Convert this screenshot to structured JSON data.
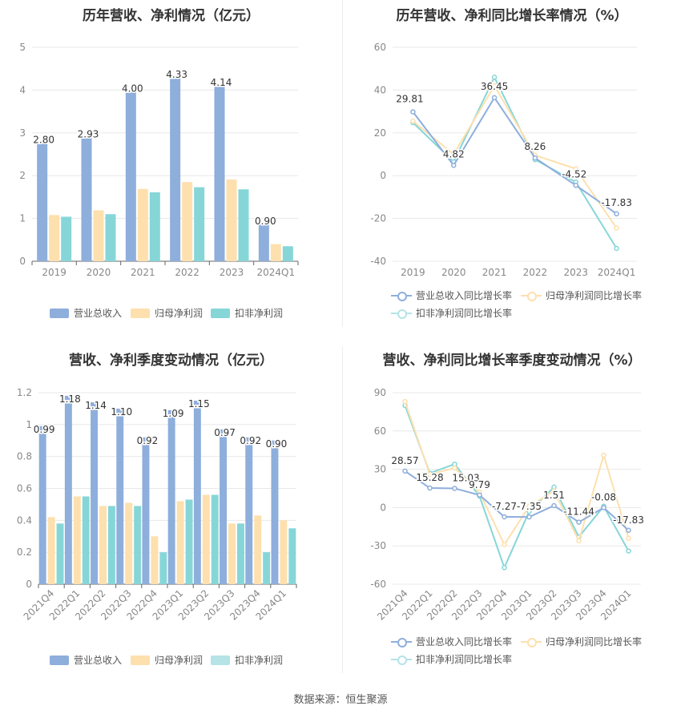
{
  "colors": {
    "revenue": "#8eaedc",
    "parent_profit": "#fde0ae",
    "nonrecurring_profit": "#86d6d8",
    "grid": "#e8e8e8",
    "axis_text": "#888888"
  },
  "source": "数据来源：恒生聚源",
  "chart_data": [
    {
      "id": "annual_bar",
      "type": "bar",
      "title": "历年营收、净利情况（亿元）",
      "categories": [
        "2019",
        "2020",
        "2021",
        "2022",
        "2023",
        "2024Q1"
      ],
      "ylim": [
        0,
        5
      ],
      "yticks": [
        "0",
        "1",
        "2",
        "3",
        "4",
        "5"
      ],
      "series": [
        {
          "name": "营业总收入",
          "values": [
            2.8,
            2.93,
            4.0,
            4.33,
            4.14,
            0.9
          ],
          "labels": [
            "2.80",
            "2.93",
            "4.00",
            "4.33",
            "4.14",
            "0.90"
          ]
        },
        {
          "name": "归母净利润",
          "values": [
            1.08,
            1.19,
            1.69,
            1.85,
            1.91,
            0.4
          ]
        },
        {
          "name": "扣非净利润",
          "values": [
            1.04,
            1.1,
            1.61,
            1.73,
            1.68,
            0.35
          ]
        }
      ],
      "legend": "bottom"
    },
    {
      "id": "annual_line",
      "type": "line",
      "title": "历年营收、净利同比增长率情况（%）",
      "categories": [
        "2019",
        "2020",
        "2021",
        "2022",
        "2023",
        "2024Q1"
      ],
      "ylim": [
        -40,
        60
      ],
      "yticks": [
        "-40",
        "-20",
        "0",
        "20",
        "40",
        "60"
      ],
      "series": [
        {
          "name": "营业总收入同比增长率",
          "values": [
            29.81,
            4.82,
            36.45,
            8.26,
            -4.52,
            -17.83
          ],
          "labels": [
            "29.81",
            "4.82",
            "36.45",
            "8.26",
            "-4.52",
            "-17.83"
          ]
        },
        {
          "name": "归母净利润同比增长率",
          "values": [
            25.5,
            10.0,
            42.0,
            9.5,
            3.2,
            -24.5
          ]
        },
        {
          "name": "扣非净利润同比增长率",
          "values": [
            24.8,
            6.5,
            46.0,
            7.5,
            -3.0,
            -34.0
          ]
        }
      ],
      "legend": "bottom"
    },
    {
      "id": "quarterly_bar",
      "type": "bar",
      "title": "营收、净利季度变动情况（亿元）",
      "categories": [
        "2021Q4",
        "2022Q1",
        "2022Q2",
        "2022Q3",
        "2022Q4",
        "2023Q1",
        "2023Q2",
        "2023Q3",
        "2023Q4",
        "2024Q1"
      ],
      "ylim": [
        0,
        1.2
      ],
      "yticks": [
        "0",
        "0.2",
        "0.4",
        "0.6",
        "0.8",
        "1",
        "1.2"
      ],
      "series": [
        {
          "name": "营业总收入",
          "values": [
            0.99,
            1.18,
            1.14,
            1.1,
            0.92,
            1.09,
            1.15,
            0.97,
            0.92,
            0.9
          ],
          "labels": [
            "0.99",
            "1.18",
            "1.14",
            "1.10",
            "0.92",
            "1.09",
            "1.15",
            "0.97",
            "0.92",
            "0.90"
          ]
        },
        {
          "name": "归母净利润",
          "values": [
            0.42,
            0.55,
            0.49,
            0.51,
            0.3,
            0.52,
            0.56,
            0.38,
            0.43,
            0.4
          ]
        },
        {
          "name": "扣非净利润",
          "values": [
            0.38,
            0.55,
            0.49,
            0.49,
            0.2,
            0.53,
            0.56,
            0.38,
            0.2,
            0.35
          ]
        }
      ],
      "legend": "bottom"
    },
    {
      "id": "quarterly_line",
      "type": "line",
      "title": "营收、净利同比增长率季度变动情况（%）",
      "categories": [
        "2021Q4",
        "2022Q1",
        "2022Q2",
        "2022Q3",
        "2022Q4",
        "2023Q1",
        "2023Q2",
        "2023Q3",
        "2023Q4",
        "2024Q1"
      ],
      "ylim": [
        -60,
        90
      ],
      "yticks": [
        "-60",
        "-30",
        "0",
        "30",
        "60",
        "90"
      ],
      "series": [
        {
          "name": "营业总收入同比增长率",
          "values": [
            28.57,
            15.28,
            15.03,
            9.79,
            -7.27,
            -7.35,
            1.51,
            -11.44,
            -0.08,
            -17.83
          ],
          "labels": [
            "28.57",
            "15.28",
            "15.03",
            "9.79",
            "-7.27",
            "-7.35",
            "1.51",
            "-11.44",
            "-0.08",
            "-17.83"
          ]
        },
        {
          "name": "归母净利润同比增长率",
          "values": [
            83.0,
            26.0,
            31.0,
            12.0,
            -29.0,
            1.0,
            13.0,
            -26.0,
            41.0,
            -24.0
          ]
        },
        {
          "name": "扣非净利润同比增长率",
          "values": [
            80.0,
            27.0,
            34.0,
            9.0,
            -47.0,
            -3.0,
            16.0,
            -23.0,
            1.0,
            -34.0
          ]
        }
      ],
      "legend": "bottom"
    }
  ]
}
